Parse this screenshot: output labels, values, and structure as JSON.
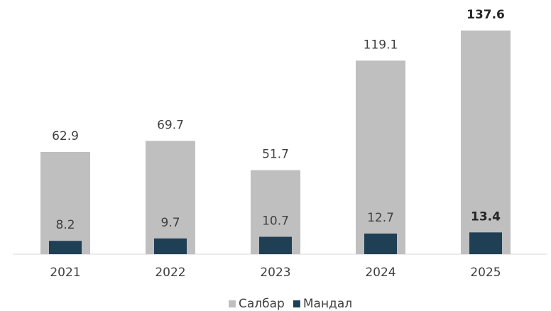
{
  "chart_data": {
    "type": "bar",
    "overlap": true,
    "categories": [
      "2021",
      "2022",
      "2023",
      "2024",
      "2025"
    ],
    "series": [
      {
        "name": "Салбар",
        "color": "#bfbfbf",
        "values": [
          62.9,
          69.7,
          51.7,
          119.1,
          137.6
        ]
      },
      {
        "name": "Мандал",
        "color": "#1f3f55",
        "values": [
          8.2,
          9.7,
          10.7,
          12.7,
          13.4
        ]
      }
    ],
    "legend": "bottom"
  }
}
